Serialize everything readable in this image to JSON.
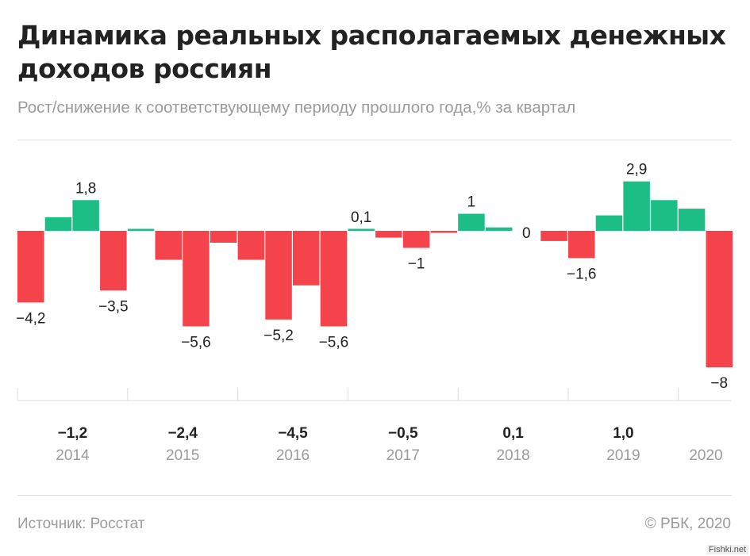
{
  "header": {
    "title": "Динамика реальных располагаемых денежных доходов россиян",
    "subtitle": "Рост/снижение к соответствующему периоду прошлого года,% за квартал"
  },
  "colors": {
    "positive": "#1dbe86",
    "negative": "#f4434b",
    "text": "#222222",
    "muted": "#9b9b9b"
  },
  "chart_data": {
    "type": "bar",
    "title": "Динамика реальных располагаемых денежных доходов россиян",
    "subtitle": "Рост/снижение к соответствующему периоду прошлого года,% за квартал",
    "values": [
      -4.2,
      0.8,
      1.8,
      -3.5,
      0.1,
      -1.7,
      -5.6,
      -0.7,
      -1.7,
      -5.2,
      -3.2,
      -5.6,
      0.1,
      -0.4,
      -1.0,
      -0.1,
      1.0,
      0.2,
      0,
      -0.6,
      -1.6,
      0.9,
      2.9,
      1.8,
      1.3,
      -8
    ],
    "data_labels": [
      {
        "index": 0,
        "text": "−4,2"
      },
      {
        "index": 2,
        "text": "1,8"
      },
      {
        "index": 3,
        "text": "−3,5"
      },
      {
        "index": 6,
        "text": "−5,6"
      },
      {
        "index": 9,
        "text": "−5,2"
      },
      {
        "index": 11,
        "text": "−5,6"
      },
      {
        "index": 12,
        "text": "0,1"
      },
      {
        "index": 14,
        "text": "−1"
      },
      {
        "index": 16,
        "text": "1"
      },
      {
        "index": 18,
        "text": "0"
      },
      {
        "index": 20,
        "text": "−1,6"
      },
      {
        "index": 22,
        "text": "2,9"
      },
      {
        "index": 25,
        "text": "−8"
      }
    ],
    "years": [
      {
        "year": "2014",
        "annual": "−1,2"
      },
      {
        "year": "2015",
        "annual": "−2,4"
      },
      {
        "year": "2016",
        "annual": "−4,5"
      },
      {
        "year": "2017",
        "annual": "−0,5"
      },
      {
        "year": "2018",
        "annual": "0,1"
      },
      {
        "year": "2019",
        "annual": "1,0"
      },
      {
        "year": "2020",
        "annual": ""
      }
    ],
    "ylim": [
      -9.4,
      3.6
    ]
  },
  "footer": {
    "source": "Источник: Росстат",
    "copyright": "© РБК, 2020"
  },
  "watermark": "Fishki.net"
}
